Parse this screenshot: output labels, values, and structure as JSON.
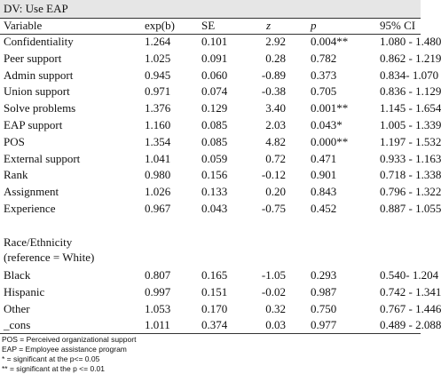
{
  "title": "DV: Use EAP",
  "table": {
    "header": [
      "Variable",
      "exp(b)",
      "SE",
      "z",
      "p",
      "95% CI"
    ],
    "rows": [
      [
        "Confidentiality",
        "1.264",
        "0.101",
        "2.92",
        "0.004**",
        "1.080 - 1.480"
      ],
      [
        "Peer support",
        "1.025",
        "0.091",
        "0.28",
        "0.782",
        "0.862 - 1.219"
      ],
      [
        "Admin support",
        "0.945",
        "0.060",
        "-0.89",
        "0.373",
        "0.834- 1.070"
      ],
      [
        "Union support",
        "0.971",
        "0.074",
        "-0.38",
        "0.705",
        "0.836 - 1.129"
      ],
      [
        "Solve problems",
        "1.376",
        "0.129",
        "3.40",
        "0.001**",
        "1.145 - 1.654"
      ],
      [
        "EAP support",
        "1.160",
        "0.085",
        "2.03",
        "0.043*",
        "1.005 - 1.339"
      ],
      [
        "POS",
        "1.354",
        "0.085",
        "4.82",
        "0.000**",
        "1.197 - 1.532"
      ],
      [
        "External support",
        "1.041",
        "0.059",
        "0.72",
        "0.471",
        "0.933 - 1.163"
      ],
      [
        "Rank",
        "0.980",
        "0.156",
        "-0.12",
        "0.901",
        "0.718 - 1.338"
      ],
      [
        "Assignment",
        "1.026",
        "0.133",
        "0.20",
        "0.843",
        "0.796 - 1.322"
      ],
      [
        "Experience",
        "0.967",
        "0.043",
        "-0.75",
        "0.452",
        "0.887 - 1.055"
      ]
    ]
  },
  "section": {
    "label": [
      "Race/Ethnicity",
      "(reference = White)"
    ],
    "rows": [
      [
        "Black",
        "0.807",
        "0.165",
        "-1.05",
        "0.293",
        "0.540- 1.204"
      ],
      [
        "Hispanic",
        "0.997",
        "0.151",
        "-0.02",
        "0.987",
        "0.742 - 1.341"
      ],
      [
        "Other",
        "1.053",
        "0.170",
        "0.32",
        "0.750",
        "0.767 - 1.446"
      ],
      [
        "_cons",
        "1.011",
        "0.374",
        "0.03",
        "0.977",
        "0.489 - 2.088"
      ]
    ]
  },
  "notes": [
    "POS = Perceived organizational support",
    "EAP = Employee assistance program",
    "* = significant at the p<= 0.05",
    "** = significant at the p <= 0.01"
  ]
}
